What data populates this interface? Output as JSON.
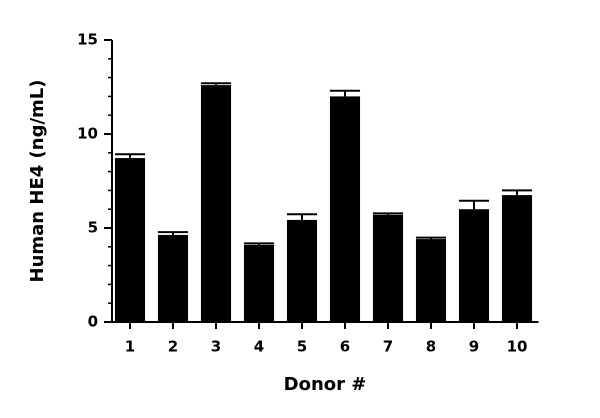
{
  "chart_data": {
    "type": "bar",
    "x_label": "Donor #",
    "y_label": "Human HE4 (ng/mL)",
    "categories": [
      "1",
      "2",
      "3",
      "4",
      "5",
      "6",
      "7",
      "8",
      "9",
      "10"
    ],
    "values": [
      8.72,
      4.63,
      12.6,
      4.1,
      5.43,
      12.0,
      5.7,
      4.41,
      6.0,
      6.75
    ],
    "errors": [
      0.2,
      0.15,
      0.1,
      0.08,
      0.3,
      0.3,
      0.08,
      0.08,
      0.45,
      0.25
    ],
    "color": "#000000",
    "ylim": [
      0,
      15
    ],
    "yticks": [
      0,
      5,
      10,
      15
    ],
    "minor_yticks": [
      1,
      2,
      3,
      4,
      6,
      7,
      8,
      9,
      11,
      12,
      13,
      14
    ],
    "grid": false
  }
}
